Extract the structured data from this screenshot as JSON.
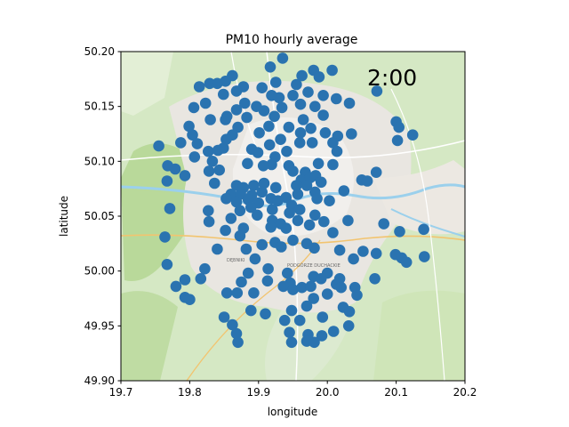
{
  "chart_data": {
    "type": "scatter",
    "title": "PM10 hourly average",
    "xlabel": "longitude",
    "ylabel": "latitude",
    "xlim": [
      19.7,
      20.2
    ],
    "ylim": [
      49.9,
      50.2
    ],
    "xticks": [
      "19.7",
      "19.8",
      "19.9",
      "20.0",
      "20.1",
      "20.2"
    ],
    "yticks": [
      "49.90",
      "49.95",
      "50.00",
      "50.05",
      "50.10",
      "50.15",
      "50.20"
    ],
    "time_label": "2:00",
    "grid": false,
    "background": "street map",
    "marker_color": "#2a73b0",
    "map_labels": [
      "DĘBNIKI",
      "PODGÓRZE DUCHACKIE"
    ],
    "points": [
      [
        19.935,
        50.194
      ],
      [
        19.917,
        50.186
      ],
      [
        19.98,
        50.183
      ],
      [
        19.963,
        50.178
      ],
      [
        19.988,
        50.177
      ],
      [
        20.007,
        50.183
      ],
      [
        19.862,
        50.178
      ],
      [
        19.852,
        50.173
      ],
      [
        19.829,
        50.171
      ],
      [
        19.84,
        50.171
      ],
      [
        19.814,
        50.168
      ],
      [
        19.878,
        50.168
      ],
      [
        19.905,
        50.167
      ],
      [
        19.925,
        50.172
      ],
      [
        19.955,
        50.17
      ],
      [
        19.972,
        50.163
      ],
      [
        19.95,
        50.16
      ],
      [
        19.93,
        50.158
      ],
      [
        19.919,
        50.16
      ],
      [
        19.868,
        50.164
      ],
      [
        19.849,
        50.161
      ],
      [
        19.88,
        50.153
      ],
      [
        19.823,
        50.153
      ],
      [
        19.806,
        50.149
      ],
      [
        19.994,
        50.16
      ],
      [
        20.013,
        50.157
      ],
      [
        20.032,
        50.153
      ],
      [
        20.072,
        50.164
      ],
      [
        19.897,
        50.15
      ],
      [
        19.908,
        50.146
      ],
      [
        19.923,
        50.141
      ],
      [
        19.934,
        50.149
      ],
      [
        19.961,
        50.152
      ],
      [
        19.982,
        50.15
      ],
      [
        19.868,
        50.147
      ],
      [
        19.854,
        50.141
      ],
      [
        19.883,
        50.14
      ],
      [
        19.915,
        50.132
      ],
      [
        19.944,
        50.131
      ],
      [
        19.965,
        50.138
      ],
      [
        19.994,
        50.142
      ],
      [
        19.83,
        50.138
      ],
      [
        19.852,
        50.138
      ],
      [
        19.799,
        50.132
      ],
      [
        19.87,
        50.131
      ],
      [
        19.901,
        50.126
      ],
      [
        19.932,
        50.12
      ],
      [
        19.961,
        50.126
      ],
      [
        19.976,
        50.13
      ],
      [
        19.997,
        50.126
      ],
      [
        20.015,
        50.123
      ],
      [
        19.862,
        50.124
      ],
      [
        20.1,
        50.136
      ],
      [
        20.104,
        50.131
      ],
      [
        20.124,
        50.124
      ],
      [
        19.804,
        50.124
      ],
      [
        19.853,
        50.12
      ],
      [
        19.849,
        50.112
      ],
      [
        19.811,
        50.116
      ],
      [
        19.89,
        50.111
      ],
      [
        19.916,
        50.115
      ],
      [
        19.941,
        50.109
      ],
      [
        19.96,
        50.117
      ],
      [
        19.978,
        50.117
      ],
      [
        20.008,
        50.117
      ],
      [
        20.035,
        50.125
      ],
      [
        19.755,
        50.114
      ],
      [
        19.787,
        50.117
      ],
      [
        19.827,
        50.109
      ],
      [
        19.841,
        50.11
      ],
      [
        19.833,
        50.1
      ],
      [
        19.899,
        50.108
      ],
      [
        19.924,
        50.104
      ],
      [
        20.014,
        50.109
      ],
      [
        20.102,
        50.119
      ],
      [
        19.807,
        50.104
      ],
      [
        19.884,
        50.098
      ],
      [
        19.919,
        50.097
      ],
      [
        19.944,
        50.096
      ],
      [
        19.987,
        50.098
      ],
      [
        20.008,
        50.097
      ],
      [
        19.768,
        50.096
      ],
      [
        19.828,
        50.091
      ],
      [
        19.843,
        50.092
      ],
      [
        19.793,
        50.087
      ],
      [
        19.907,
        50.096
      ],
      [
        19.95,
        50.091
      ],
      [
        19.968,
        50.09
      ],
      [
        19.983,
        50.087
      ],
      [
        19.779,
        50.093
      ],
      [
        20.071,
        50.09
      ],
      [
        20.05,
        50.083
      ],
      [
        20.058,
        50.082
      ],
      [
        19.962,
        50.083
      ],
      [
        19.975,
        50.085
      ],
      [
        19.991,
        50.081
      ],
      [
        19.767,
        50.082
      ],
      [
        19.836,
        50.08
      ],
      [
        19.868,
        50.078
      ],
      [
        19.878,
        50.076
      ],
      [
        19.893,
        50.078
      ],
      [
        19.908,
        50.08
      ],
      [
        19.925,
        50.076
      ],
      [
        19.955,
        50.078
      ],
      [
        19.97,
        50.078
      ],
      [
        19.982,
        50.072
      ],
      [
        20.024,
        50.073
      ],
      [
        19.86,
        50.07
      ],
      [
        19.874,
        50.07
      ],
      [
        19.89,
        50.069
      ],
      [
        19.905,
        50.072
      ],
      [
        19.918,
        50.066
      ],
      [
        19.94,
        50.067
      ],
      [
        19.957,
        50.07
      ],
      [
        19.853,
        50.066
      ],
      [
        19.868,
        50.063
      ],
      [
        19.885,
        50.065
      ],
      [
        19.9,
        50.062
      ],
      [
        19.928,
        50.064
      ],
      [
        19.948,
        50.06
      ],
      [
        19.985,
        50.066
      ],
      [
        20.003,
        50.064
      ],
      [
        19.771,
        50.057
      ],
      [
        19.827,
        50.055
      ],
      [
        19.873,
        50.055
      ],
      [
        19.889,
        50.058
      ],
      [
        19.92,
        50.056
      ],
      [
        19.945,
        50.053
      ],
      [
        19.96,
        50.056
      ],
      [
        19.982,
        50.051
      ],
      [
        19.828,
        50.045
      ],
      [
        19.86,
        50.048
      ],
      [
        19.898,
        50.051
      ],
      [
        19.92,
        50.046
      ],
      [
        19.932,
        50.043
      ],
      [
        19.957,
        50.046
      ],
      [
        19.974,
        50.042
      ],
      [
        19.995,
        50.045
      ],
      [
        20.03,
        50.046
      ],
      [
        19.852,
        50.037
      ],
      [
        19.878,
        50.039
      ],
      [
        19.918,
        50.04
      ],
      [
        19.94,
        50.039
      ],
      [
        20.008,
        50.035
      ],
      [
        20.082,
        50.043
      ],
      [
        20.105,
        50.036
      ],
      [
        20.14,
        50.038
      ],
      [
        19.764,
        50.031
      ],
      [
        19.873,
        50.032
      ],
      [
        19.905,
        50.024
      ],
      [
        19.924,
        50.026
      ],
      [
        19.95,
        50.028
      ],
      [
        19.97,
        50.025
      ],
      [
        19.84,
        50.02
      ],
      [
        19.882,
        50.02
      ],
      [
        19.933,
        50.022
      ],
      [
        19.981,
        50.021
      ],
      [
        20.018,
        50.019
      ],
      [
        20.052,
        50.018
      ],
      [
        20.071,
        50.016
      ],
      [
        19.895,
        50.011
      ],
      [
        20.038,
        50.011
      ],
      [
        20.099,
        50.015
      ],
      [
        20.108,
        50.012
      ],
      [
        20.115,
        50.008
      ],
      [
        20.141,
        50.013
      ],
      [
        19.767,
        50.006
      ],
      [
        19.822,
        50.002
      ],
      [
        19.885,
        49.998
      ],
      [
        19.914,
        50.002
      ],
      [
        19.942,
        49.998
      ],
      [
        19.98,
        49.995
      ],
      [
        20.0,
        49.998
      ],
      [
        20.018,
        49.993
      ],
      [
        19.793,
        49.992
      ],
      [
        19.816,
        49.993
      ],
      [
        19.875,
        49.99
      ],
      [
        19.913,
        49.991
      ],
      [
        19.946,
        49.989
      ],
      [
        19.991,
        49.993
      ],
      [
        20.013,
        49.988
      ],
      [
        20.02,
        49.985
      ],
      [
        20.04,
        49.985
      ],
      [
        20.069,
        49.993
      ],
      [
        19.78,
        49.986
      ],
      [
        19.936,
        49.986
      ],
      [
        19.95,
        49.983
      ],
      [
        19.963,
        49.985
      ],
      [
        19.976,
        49.986
      ],
      [
        19.854,
        49.98
      ],
      [
        19.869,
        49.98
      ],
      [
        19.893,
        49.98
      ],
      [
        20.0,
        49.979
      ],
      [
        20.043,
        49.978
      ],
      [
        19.793,
        49.976
      ],
      [
        19.8,
        49.974
      ],
      [
        19.98,
        49.975
      ],
      [
        19.948,
        49.964
      ],
      [
        19.97,
        49.968
      ],
      [
        19.889,
        49.964
      ],
      [
        19.85,
        49.958
      ],
      [
        19.91,
        49.961
      ],
      [
        19.993,
        49.958
      ],
      [
        20.023,
        49.967
      ],
      [
        20.032,
        49.963
      ],
      [
        19.862,
        49.951
      ],
      [
        20.031,
        49.95
      ],
      [
        19.938,
        49.955
      ],
      [
        19.96,
        49.955
      ],
      [
        19.868,
        49.943
      ],
      [
        19.945,
        49.944
      ],
      [
        19.972,
        49.942
      ],
      [
        19.992,
        49.941
      ],
      [
        20.009,
        49.945
      ],
      [
        19.87,
        49.935
      ],
      [
        19.948,
        49.935
      ],
      [
        19.97,
        49.936
      ],
      [
        19.981,
        49.935
      ]
    ]
  }
}
